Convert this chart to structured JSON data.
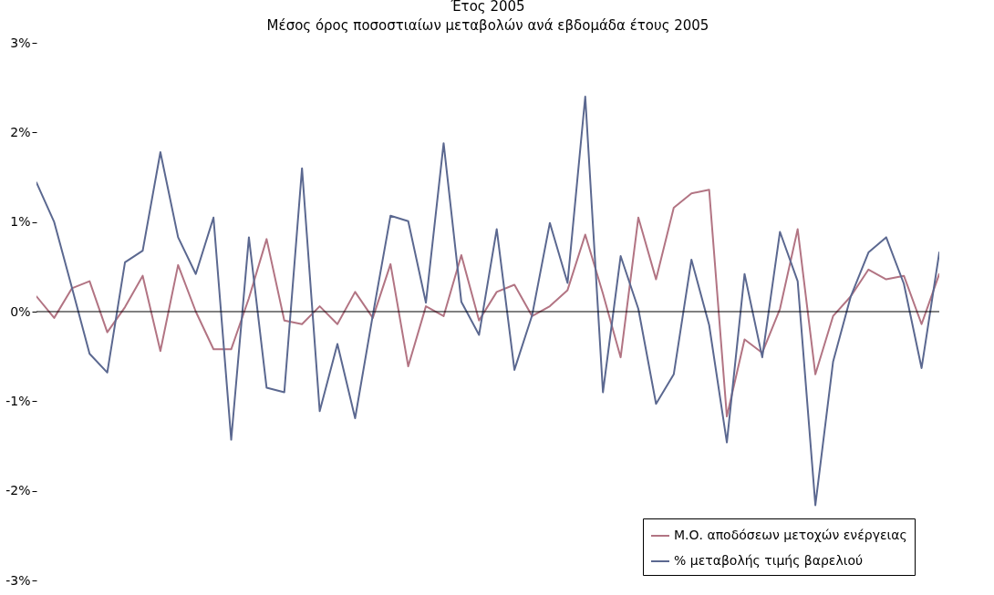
{
  "chart_data": {
    "type": "line",
    "title": "Έτος 2005",
    "subtitle": "Μέσος όρος ποσοστιαίων μεταβολών ανά εβδομάδα έτους 2005",
    "categories": [
      null,
      null,
      null,
      null,
      null,
      null,
      null,
      null,
      null,
      null,
      null,
      null,
      null,
      null,
      null,
      null,
      null,
      null,
      null,
      null,
      null,
      null,
      null,
      null,
      null,
      null,
      null,
      null,
      null,
      null,
      null,
      null,
      null,
      null,
      null,
      null,
      null,
      null,
      null,
      null,
      null,
      null,
      null,
      null,
      null,
      null,
      null,
      null,
      null,
      null,
      null,
      null
    ],
    "series": [
      {
        "name": "Μ.Ο. αποδόσεων μετοχών ενέργειας",
        "color": "#b27483",
        "values": [
          0.17,
          -0.07,
          0.26,
          0.34,
          -0.23,
          0.05,
          0.4,
          -0.44,
          0.52,
          0.0,
          -0.42,
          -0.42,
          0.15,
          0.81,
          -0.1,
          -0.14,
          0.06,
          -0.14,
          0.22,
          -0.07,
          0.53,
          -0.61,
          0.06,
          -0.05,
          0.63,
          -0.1,
          0.22,
          0.3,
          -0.05,
          0.06,
          0.24,
          0.86,
          0.2,
          -0.51,
          1.05,
          0.36,
          1.16,
          1.32,
          1.36,
          -1.17,
          -0.31,
          -0.46,
          0.03,
          0.92,
          -0.7,
          -0.05,
          0.17,
          0.47,
          0.36,
          0.4,
          -0.14,
          0.42
        ]
      },
      {
        "name": "% μεταβολής τιμής βαρελιού",
        "color": "#5b6890",
        "values": [
          1.44,
          1.0,
          0.27,
          -0.47,
          -0.68,
          0.55,
          0.68,
          1.78,
          0.83,
          0.42,
          1.05,
          -1.43,
          0.83,
          -0.85,
          -0.9,
          1.6,
          -1.11,
          -0.36,
          -1.19,
          -0.04,
          1.07,
          1.01,
          0.1,
          1.88,
          0.11,
          -0.26,
          0.92,
          -0.65,
          -0.04,
          0.99,
          0.32,
          2.4,
          -0.9,
          0.62,
          0.03,
          -1.03,
          -0.7,
          0.58,
          -0.15,
          -1.46,
          0.42,
          -0.51,
          0.89,
          0.34,
          -2.16,
          -0.56,
          0.17,
          0.66,
          0.83,
          0.31,
          -0.63,
          0.66
        ]
      }
    ],
    "ylim": [
      -3,
      3
    ],
    "yticks": [
      {
        "value": -3,
        "label": "-3%"
      },
      {
        "value": -2,
        "label": "-2%"
      },
      {
        "value": -1,
        "label": "-1%"
      },
      {
        "value": 0,
        "label": "0%"
      },
      {
        "value": 1,
        "label": "1%"
      },
      {
        "value": 2,
        "label": "2%"
      },
      {
        "value": 3,
        "label": "3%"
      }
    ],
    "ref_lines": [
      {
        "axis": "y",
        "value": 0,
        "color": "#000000"
      }
    ],
    "grid": false,
    "legend": "bottom right",
    "tick_labels": "y",
    "marker": "none",
    "line_style": "solid"
  }
}
